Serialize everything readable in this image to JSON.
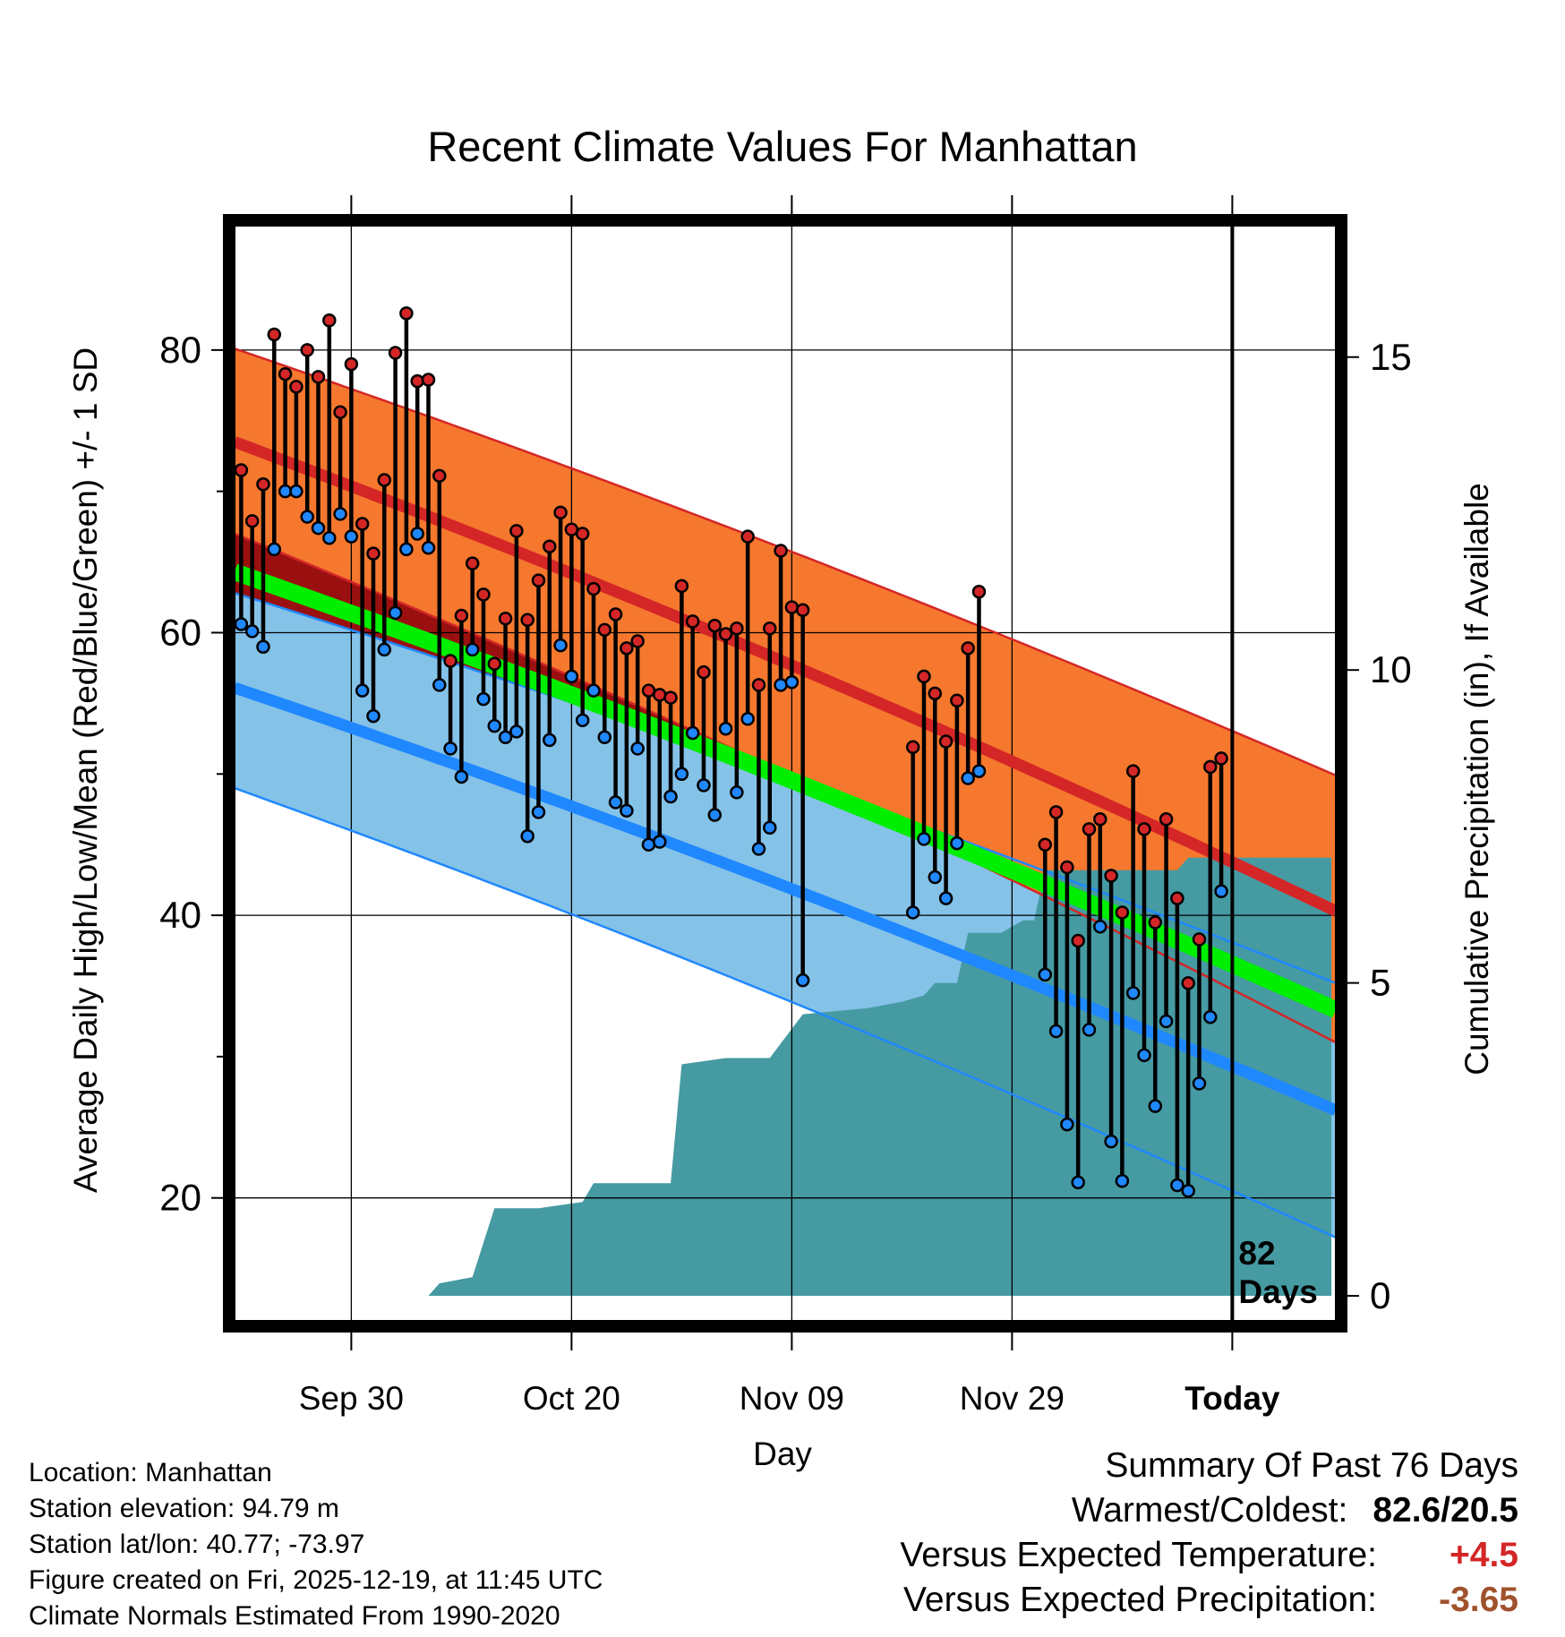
{
  "chart_data": {
    "type": "line",
    "title": "Recent Climate Values For Manhattan",
    "xlabel": "Day",
    "ylabel": "Average Daily High/Low/Mean (Red/Blue/Green) +/- 1 SD",
    "y2label": "Cumulative Precipitation (in), If Available",
    "x_tick_labels": [
      "Sep 30",
      "Oct 20",
      "Nov 09",
      "Nov 29",
      "Today"
    ],
    "x_tick_days": [
      10,
      30,
      50,
      70,
      90
    ],
    "xlim": [
      -0.6,
      99.4
    ],
    "y_ticks": [
      20,
      40,
      60,
      80
    ],
    "ylim": [
      11.3,
      88.8
    ],
    "y2_ticks": [
      0,
      5,
      10,
      15
    ],
    "y2lim": [
      -0.4,
      17.1
    ],
    "today_label": "82\nDays",
    "today_day": 90,
    "normal_high": {
      "start": 73.5,
      "end": 40.3
    },
    "normal_high_upper": {
      "start": 80.1,
      "end": 49.9
    },
    "normal_high_lower": {
      "start": 67.0,
      "end": 31.0
    },
    "normal_low": {
      "start": 56.1,
      "end": 26.2
    },
    "normal_low_upper": {
      "start": 62.8,
      "end": 35.2
    },
    "normal_low_lower": {
      "start": 49.0,
      "end": 17.2
    },
    "normal_mean": {
      "start": 64.3,
      "end": 33.3
    },
    "observations": [
      {
        "day": 0,
        "high": 71.5,
        "low": 60.6
      },
      {
        "day": 1,
        "high": 67.9,
        "low": 60.1
      },
      {
        "day": 2,
        "high": 70.5,
        "low": 59.0
      },
      {
        "day": 3,
        "high": 81.1,
        "low": 65.9
      },
      {
        "day": 4,
        "high": 78.3,
        "low": 70.0
      },
      {
        "day": 5,
        "high": 77.4,
        "low": 70.0
      },
      {
        "day": 6,
        "high": 80.0,
        "low": 68.2
      },
      {
        "day": 7,
        "high": 78.1,
        "low": 67.4
      },
      {
        "day": 8,
        "high": 82.1,
        "low": 66.7
      },
      {
        "day": 9,
        "high": 75.6,
        "low": 68.4
      },
      {
        "day": 10,
        "high": 79.0,
        "low": 66.8
      },
      {
        "day": 11,
        "high": 67.7,
        "low": 55.9
      },
      {
        "day": 12,
        "high": 65.6,
        "low": 54.1
      },
      {
        "day": 13,
        "high": 70.8,
        "low": 58.8
      },
      {
        "day": 14,
        "high": 79.8,
        "low": 61.4
      },
      {
        "day": 15,
        "high": 82.6,
        "low": 65.9
      },
      {
        "day": 16,
        "high": 77.8,
        "low": 67.0
      },
      {
        "day": 17,
        "high": 77.9,
        "low": 66.0
      },
      {
        "day": 18,
        "high": 71.1,
        "low": 56.3
      },
      {
        "day": 19,
        "high": 58.0,
        "low": 51.8
      },
      {
        "day": 20,
        "high": 61.2,
        "low": 49.8
      },
      {
        "day": 21,
        "high": 64.9,
        "low": 58.8
      },
      {
        "day": 22,
        "high": 62.7,
        "low": 55.3
      },
      {
        "day": 23,
        "high": 57.8,
        "low": 53.4
      },
      {
        "day": 24,
        "high": 61.0,
        "low": 52.6
      },
      {
        "day": 25,
        "high": 67.2,
        "low": 53.0
      },
      {
        "day": 26,
        "high": 60.9,
        "low": 45.6
      },
      {
        "day": 27,
        "high": 63.7,
        "low": 47.3
      },
      {
        "day": 28,
        "high": 66.1,
        "low": 52.4
      },
      {
        "day": 29,
        "high": 68.5,
        "low": 59.1
      },
      {
        "day": 30,
        "high": 67.3,
        "low": 56.9
      },
      {
        "day": 31,
        "high": 67.0,
        "low": 53.8
      },
      {
        "day": 32,
        "high": 63.1,
        "low": 55.9
      },
      {
        "day": 33,
        "high": 60.2,
        "low": 52.6
      },
      {
        "day": 34,
        "high": 61.3,
        "low": 48.0
      },
      {
        "day": 35,
        "high": 58.9,
        "low": 47.4
      },
      {
        "day": 36,
        "high": 59.4,
        "low": 51.8
      },
      {
        "day": 37,
        "high": 55.9,
        "low": 45.0
      },
      {
        "day": 38,
        "high": 55.6,
        "low": 45.2
      },
      {
        "day": 39,
        "high": 55.4,
        "low": 48.4
      },
      {
        "day": 40,
        "high": 63.3,
        "low": 50.0
      },
      {
        "day": 41,
        "high": 60.8,
        "low": 52.9
      },
      {
        "day": 42,
        "high": 57.2,
        "low": 49.2
      },
      {
        "day": 43,
        "high": 60.5,
        "low": 47.1
      },
      {
        "day": 44,
        "high": 59.9,
        "low": 53.2
      },
      {
        "day": 45,
        "high": 60.3,
        "low": 48.7
      },
      {
        "day": 46,
        "high": 66.8,
        "low": 53.9
      },
      {
        "day": 47,
        "high": 56.3,
        "low": 44.7
      },
      {
        "day": 48,
        "high": 60.3,
        "low": 46.2
      },
      {
        "day": 49,
        "high": 65.8,
        "low": 56.3
      },
      {
        "day": 50,
        "high": 61.8,
        "low": 56.5
      },
      {
        "day": 51,
        "high": 61.6,
        "low": 35.4
      },
      {
        "day": 61,
        "high": 51.9,
        "low": 40.2
      },
      {
        "day": 62,
        "high": 56.9,
        "low": 45.4
      },
      {
        "day": 63,
        "high": 55.7,
        "low": 42.7
      },
      {
        "day": 64,
        "high": 52.3,
        "low": 41.2
      },
      {
        "day": 65,
        "high": 55.2,
        "low": 45.1
      },
      {
        "day": 66,
        "high": 58.9,
        "low": 49.7
      },
      {
        "day": 67,
        "high": 62.9,
        "low": 50.2
      },
      {
        "day": 73,
        "high": 45.0,
        "low": 35.8
      },
      {
        "day": 74,
        "high": 47.3,
        "low": 31.8
      },
      {
        "day": 75,
        "high": 43.4,
        "low": 25.2
      },
      {
        "day": 76,
        "high": 38.2,
        "low": 21.1
      },
      {
        "day": 77,
        "high": 46.1,
        "low": 31.9
      },
      {
        "day": 78,
        "high": 46.8,
        "low": 39.2
      },
      {
        "day": 79,
        "high": 42.8,
        "low": 24.0
      },
      {
        "day": 80,
        "high": 40.2,
        "low": 21.2
      },
      {
        "day": 81,
        "high": 50.2,
        "low": 34.5
      },
      {
        "day": 82,
        "high": 46.1,
        "low": 30.1
      },
      {
        "day": 83,
        "high": 39.5,
        "low": 26.5
      },
      {
        "day": 84,
        "high": 46.8,
        "low": 32.5
      },
      {
        "day": 85,
        "high": 41.2,
        "low": 20.9
      },
      {
        "day": 86,
        "high": 35.2,
        "low": 20.5
      },
      {
        "day": 87,
        "high": 38.3,
        "low": 28.1
      },
      {
        "day": 88,
        "high": 50.5,
        "low": 32.8
      },
      {
        "day": 89,
        "high": 51.1,
        "low": 41.7
      }
    ],
    "precipitation_cumulative": [
      [
        0,
        0
      ],
      [
        17,
        0
      ],
      [
        18,
        0.2
      ],
      [
        21,
        0.3
      ],
      [
        23,
        1.4
      ],
      [
        27,
        1.4
      ],
      [
        31,
        1.5
      ],
      [
        32,
        1.8
      ],
      [
        39,
        1.8
      ],
      [
        40,
        3.7
      ],
      [
        44,
        3.8
      ],
      [
        48,
        3.8
      ],
      [
        51,
        4.5
      ],
      [
        57,
        4.6
      ],
      [
        60,
        4.7
      ],
      [
        62,
        4.8
      ],
      [
        63,
        5.0
      ],
      [
        65,
        5.0
      ],
      [
        66,
        5.8
      ],
      [
        69,
        5.8
      ],
      [
        70,
        5.9
      ],
      [
        71,
        6.0
      ],
      [
        72,
        6.0
      ],
      [
        73,
        6.8
      ],
      [
        85,
        6.8
      ],
      [
        86,
        7.0
      ],
      [
        99,
        7.0
      ]
    ],
    "colors": {
      "high_band": "#F5782E",
      "high_line": "#D42626",
      "low_band": "#85C2E8",
      "low_line": "#2088FF",
      "mean_line": "#00EE00",
      "below_band": "#9A1010",
      "precip_fill": "#469AA2",
      "high_marker": "#D42626",
      "low_marker": "#2088FF"
    }
  },
  "info": {
    "location": "Location: Manhattan",
    "elevation": "Station elevation: 94.79 m",
    "latlon": "Station lat/lon: 40.77; -73.97",
    "created": "Figure created on Fri, 2025-12-19, at 11:45 UTC",
    "normals": "Climate Normals Estimated From 1990-2020"
  },
  "summary": {
    "title": "Summary Of Past 76 Days",
    "warmest_label": "Warmest/Coldest:",
    "warmest_value": "82.6/20.5",
    "temp_label": "Versus Expected Temperature:",
    "temp_value": "+4.5",
    "temp_color": "#D42626",
    "precip_label": "Versus Expected Precipitation:",
    "precip_value": "-3.65",
    "precip_color": "#A0522D"
  }
}
